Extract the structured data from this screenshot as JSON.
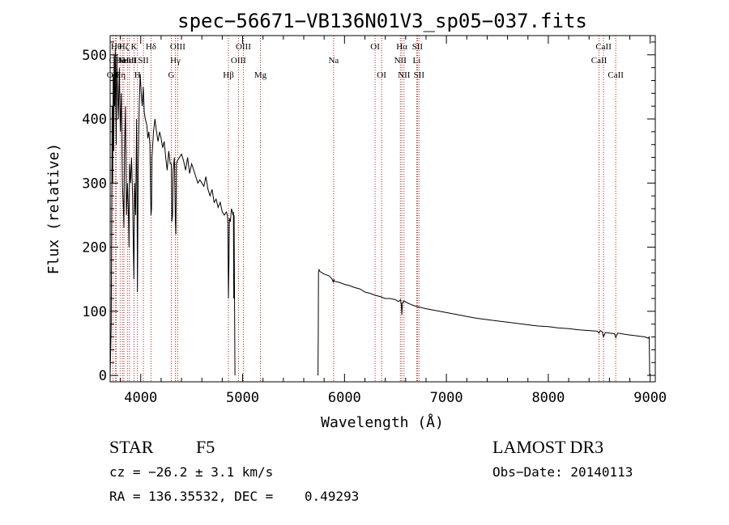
{
  "chart_data": {
    "type": "line",
    "title": "spec−56671−VB136N01V3_sp05−037.fits",
    "xlabel": "Wavelength (Å)",
    "ylabel": "Flux (relative)",
    "xlim": [
      3700,
      9050
    ],
    "ylim": [
      -10,
      530
    ],
    "xticks": [
      4000,
      5000,
      6000,
      7000,
      8000,
      9000
    ],
    "yticks": [
      0,
      100,
      200,
      300,
      400,
      500
    ],
    "grid": false,
    "series": [
      {
        "name": "flux",
        "color": "#000000",
        "segments": [
          {
            "x": [
              3700,
              3710,
              3715,
              3720,
              3725,
              3730,
              3735,
              3740,
              3745,
              3750,
              3760,
              3765,
              3770,
              3780,
              3790,
              3795,
              3800,
              3810,
              3820,
              3830,
              3835,
              3840,
              3850,
              3860,
              3870,
              3880,
              3885,
              3890,
              3900,
              3910,
              3920,
              3930,
              3933,
              3940,
              3950,
              3960,
              3965,
              3968,
              3975,
              3985,
              3995,
              4005,
              4015,
              4025,
              4035,
              4045,
              4060,
              4070,
              4080,
              4090,
              4095,
              4101,
              4106,
              4110,
              4125,
              4140,
              4155,
              4170,
              4185,
              4200,
              4215,
              4230,
              4245,
              4260,
              4275,
              4290,
              4300,
              4306,
              4312,
              4318,
              4330,
              4340,
              4345,
              4350,
              4360,
              4380,
              4400,
              4420,
              4440,
              4460,
              4480,
              4500,
              4520,
              4540,
              4560,
              4580,
              4600,
              4620,
              4640,
              4660,
              4680,
              4700,
              4720,
              4740,
              4760,
              4780,
              4800,
              4820,
              4840,
              4850,
              4855,
              4861,
              4866,
              4870,
              4880,
              4890,
              4900,
              4905,
              4910,
              4913,
              4916,
              4920,
              4925
            ],
            "y": [
              0,
              80,
              250,
              420,
              300,
              470,
              350,
              500,
              420,
              510,
              360,
              500,
              460,
              400,
              480,
              420,
              380,
              440,
              300,
              260,
              230,
              340,
              420,
              250,
              300,
              250,
              200,
              330,
              300,
              340,
              280,
              180,
              150,
              300,
              250,
              400,
              250,
              130,
              320,
              420,
              470,
              440,
              420,
              450,
              410,
              400,
              390,
              370,
              380,
              360,
              300,
              250,
              260,
              340,
              380,
              400,
              380,
              365,
              380,
              370,
              355,
              365,
              340,
              320,
              350,
              330,
              330,
              240,
              250,
              320,
              340,
              240,
              220,
              330,
              335,
              340,
              345,
              335,
              320,
              340,
              315,
              330,
              320,
              310,
              300,
              305,
              300,
              295,
              310,
              290,
              280,
              290,
              270,
              275,
              262,
              270,
              255,
              250,
              255,
              250,
              240,
              120,
              180,
              245,
              240,
              260,
              255,
              250,
              255,
              120,
              250,
              130,
              0
            ]
          },
          {
            "x": [
              5740,
              5742,
              5745,
              5750,
              5760,
              5780,
              5800,
              5850,
              5880,
              5890,
              5896,
              5900,
              5950,
              6000,
              6050,
              6100,
              6150,
              6200,
              6250,
              6300,
              6350,
              6400,
              6450,
              6500,
              6530,
              6550,
              6558,
              6563,
              6568,
              6580,
              6620,
              6660,
              6700,
              6750,
              6800,
              6900,
              7000,
              7100,
              7200,
              7300,
              7400,
              7500,
              7600,
              7700,
              7800,
              7900,
              8000,
              8100,
              8200,
              8300,
              8400,
              8480,
              8498,
              8510,
              8530,
              8542,
              8560,
              8600,
              8650,
              8662,
              8680,
              8750,
              8800,
              8850,
              8900,
              8950,
              8980,
              8990,
              8995
            ],
            "y": [
              0,
              60,
              160,
              165,
              162,
              160,
              158,
              155,
              150,
              145,
              150,
              147,
              145,
              142,
              140,
              137,
              135,
              130,
              128,
              125,
              123,
              120,
              120,
              118,
              115,
              118,
              110,
              95,
              112,
              116,
              113,
              110,
              108,
              106,
              104,
              101,
              98,
              95,
              92,
              89,
              87,
              85,
              83,
              81,
              79,
              77,
              76,
              74,
              73,
              71,
              70,
              69,
              66,
              70,
              68,
              60,
              67,
              66,
              65,
              59,
              66,
              64,
              63,
              62,
              61,
              60,
              58,
              60,
              0
            ]
          }
        ]
      }
    ],
    "annotations": [
      {
        "wavelength": 3727,
        "label": "OII",
        "row": 2
      },
      {
        "wavelength": 3750,
        "label": "OII",
        "row": 1
      },
      {
        "wavelength": 3760,
        "label": "Hθ",
        "row": 0
      },
      {
        "wavelength": 3798,
        "label": "Hη",
        "row": 2
      },
      {
        "wavelength": 3820,
        "label": "HeI",
        "row": 1
      },
      {
        "wavelength": 3835,
        "label": "Hζ",
        "row": 0
      },
      {
        "wavelength": 3869,
        "label": "NeIII",
        "row": 1
      },
      {
        "wavelength": 3889,
        "label": "HeI",
        "row": 1
      },
      {
        "wavelength": 3934,
        "label": "K",
        "row": 0
      },
      {
        "wavelength": 3968,
        "label": "H",
        "row": 2
      },
      {
        "wavelength": 4026,
        "label": "SII",
        "row": 1
      },
      {
        "wavelength": 4101,
        "label": "Hδ",
        "row": 0
      },
      {
        "wavelength": 4300,
        "label": "G",
        "row": 2
      },
      {
        "wavelength": 4340,
        "label": "Hγ",
        "row": 1
      },
      {
        "wavelength": 4363,
        "label": "OIII",
        "row": 0
      },
      {
        "wavelength": 4861,
        "label": "Hβ",
        "row": 2
      },
      {
        "wavelength": 4959,
        "label": "OIII",
        "row": 1
      },
      {
        "wavelength": 5007,
        "label": "OIII",
        "row": 0
      },
      {
        "wavelength": 5175,
        "label": "Mg",
        "row": 2
      },
      {
        "wavelength": 5893,
        "label": "Na",
        "row": 1
      },
      {
        "wavelength": 6300,
        "label": "OI",
        "row": 0
      },
      {
        "wavelength": 6364,
        "label": "OI",
        "row": 2
      },
      {
        "wavelength": 6548,
        "label": "NII",
        "row": 1
      },
      {
        "wavelength": 6563,
        "label": "Hα",
        "row": 0
      },
      {
        "wavelength": 6584,
        "label": "NII",
        "row": 2
      },
      {
        "wavelength": 6708,
        "label": "Li",
        "row": 1
      },
      {
        "wavelength": 6716,
        "label": "SII",
        "row": 0
      },
      {
        "wavelength": 6731,
        "label": "SII",
        "row": 2
      },
      {
        "wavelength": 8498,
        "label": "CaII",
        "row": 1
      },
      {
        "wavelength": 8542,
        "label": "CaII",
        "row": 0
      },
      {
        "wavelength": 8662,
        "label": "CaII",
        "row": 2
      }
    ]
  },
  "info": {
    "object_class": "STAR",
    "subclass": "F5",
    "velocity": "cz = −26.2 ± 3.1 km/s",
    "coordinates": "RA = 136.35532, DEC =    0.49293",
    "survey": "LAMOST DR3",
    "obs_date": "Obs−Date: 20140113"
  },
  "colors": {
    "line": "#000000",
    "marker_line": "#b22222"
  }
}
